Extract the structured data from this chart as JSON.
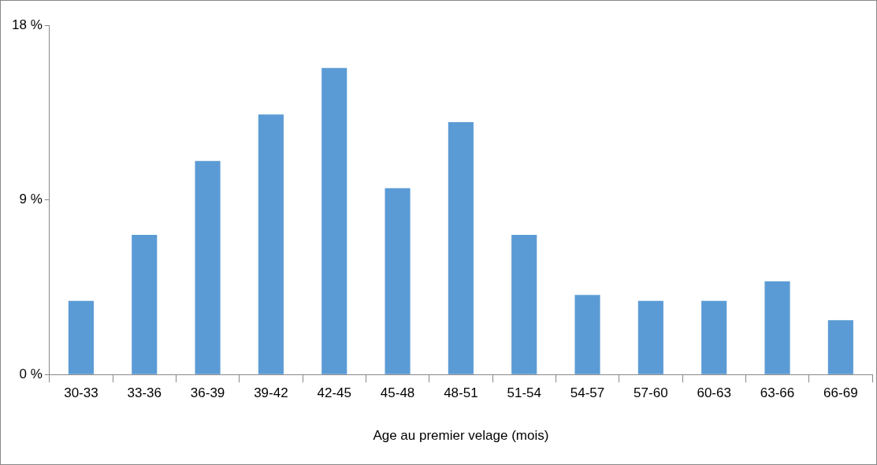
{
  "chart_data": {
    "type": "bar",
    "xlabel": "Age au premier velage (mois)",
    "categories": [
      "30-33",
      "33-36",
      "36-39",
      "39-42",
      "42-45",
      "45-48",
      "48-51",
      "51-54",
      "54-57",
      "57-60",
      "60-63",
      "63-66",
      "66-69"
    ],
    "values": [
      3.8,
      7.2,
      11.0,
      13.4,
      15.8,
      9.6,
      13.0,
      7.2,
      4.1,
      3.8,
      3.8,
      4.8,
      2.8
    ],
    "color": "#5b9bd5",
    "ylim": [
      0,
      18
    ],
    "yticks": [
      {
        "value": 0,
        "label": "0 %"
      },
      {
        "value": 9,
        "label": "9 %"
      },
      {
        "value": 18,
        "label": "18 %"
      }
    ],
    "grid": false,
    "legend": false
  }
}
